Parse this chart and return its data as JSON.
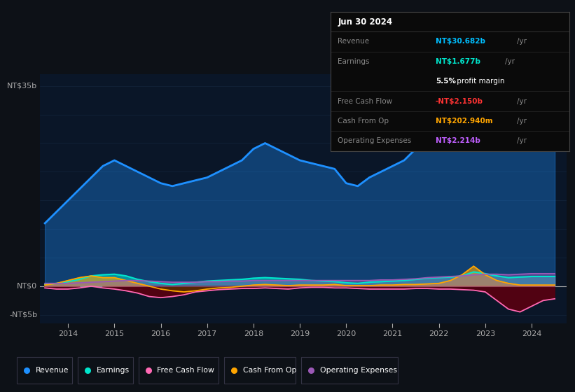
{
  "bg_color": "#0d1117",
  "plot_bg_color": "#0a1628",
  "grid_color": "#162840",
  "title_date": "Jun 30 2024",
  "tooltip": {
    "Revenue": {
      "value": "NT$30.682b",
      "unit": "/yr",
      "color": "#00bfff"
    },
    "Earnings": {
      "value": "NT$1.677b",
      "unit": "/yr",
      "color": "#00e5cc"
    },
    "profit_margin_pct": "5.5%",
    "profit_margin_text": " profit margin",
    "Free Cash Flow": {
      "value": "-NT$2.150b",
      "unit": "/yr",
      "color": "#ff3333"
    },
    "Cash From Op": {
      "value": "NT$202.940m",
      "unit": "/yr",
      "color": "#ffa500"
    },
    "Operating Expenses": {
      "value": "NT$2.214b",
      "unit": "/yr",
      "color": "#bf5fff"
    }
  },
  "colors": {
    "Revenue": "#1e90ff",
    "Earnings": "#00e5cc",
    "Free Cash Flow": "#ff69b4",
    "Cash From Op": "#ffa500",
    "Operating Expenses": "#9b59b6"
  },
  "years": [
    2013.5,
    2013.75,
    2014.0,
    2014.25,
    2014.5,
    2014.75,
    2015.0,
    2015.25,
    2015.5,
    2015.75,
    2016.0,
    2016.25,
    2016.5,
    2016.75,
    2017.0,
    2017.25,
    2017.5,
    2017.75,
    2018.0,
    2018.25,
    2018.5,
    2018.75,
    2019.0,
    2019.25,
    2019.5,
    2019.75,
    2020.0,
    2020.25,
    2020.5,
    2020.75,
    2021.0,
    2021.25,
    2021.5,
    2021.75,
    2022.0,
    2022.25,
    2022.5,
    2022.75,
    2023.0,
    2023.25,
    2023.5,
    2023.75,
    2024.0,
    2024.25,
    2024.5
  ],
  "revenue": [
    11,
    13,
    15,
    17,
    19,
    21,
    22,
    21,
    20,
    19,
    18,
    17.5,
    18,
    18.5,
    19,
    20,
    21,
    22,
    24,
    25,
    24,
    23,
    22,
    21.5,
    21,
    20.5,
    18,
    17.5,
    19,
    20,
    21,
    22,
    24,
    26,
    28,
    30,
    33,
    35,
    32,
    29,
    27,
    29,
    30,
    30.5,
    30.7
  ],
  "earnings": [
    0.3,
    0.5,
    0.8,
    1.2,
    1.8,
    2.0,
    2.1,
    1.8,
    1.2,
    0.8,
    0.5,
    0.3,
    0.5,
    0.7,
    0.9,
    1.0,
    1.1,
    1.2,
    1.4,
    1.5,
    1.4,
    1.3,
    1.2,
    1.0,
    0.9,
    0.8,
    0.6,
    0.5,
    0.7,
    0.8,
    0.9,
    1.0,
    1.2,
    1.4,
    1.5,
    1.6,
    1.8,
    2.5,
    2.2,
    1.8,
    1.5,
    1.6,
    1.7,
    1.7,
    1.7
  ],
  "free_cash_flow": [
    -0.3,
    -0.5,
    -0.5,
    -0.3,
    0.0,
    -0.3,
    -0.5,
    -0.8,
    -1.2,
    -1.8,
    -2.0,
    -1.8,
    -1.5,
    -1.0,
    -0.8,
    -0.6,
    -0.5,
    -0.4,
    -0.4,
    -0.3,
    -0.4,
    -0.5,
    -0.3,
    -0.2,
    -0.2,
    -0.3,
    -0.3,
    -0.4,
    -0.5,
    -0.5,
    -0.5,
    -0.5,
    -0.4,
    -0.4,
    -0.5,
    -0.5,
    -0.6,
    -0.7,
    -1.0,
    -2.5,
    -4.0,
    -4.5,
    -3.5,
    -2.5,
    -2.2
  ],
  "cash_from_op": [
    0.2,
    0.5,
    1.0,
    1.5,
    1.8,
    1.5,
    1.5,
    1.0,
    0.5,
    0.0,
    -0.5,
    -0.8,
    -1.0,
    -0.8,
    -0.5,
    -0.3,
    -0.2,
    0.0,
    0.2,
    0.3,
    0.2,
    0.1,
    0.2,
    0.2,
    0.2,
    0.3,
    0.1,
    0.1,
    0.1,
    0.2,
    0.2,
    0.3,
    0.3,
    0.4,
    0.5,
    1.0,
    2.0,
    3.5,
    2.0,
    1.0,
    0.5,
    0.2,
    0.2,
    0.2,
    0.2
  ],
  "op_expenses": [
    0.5,
    0.5,
    0.5,
    0.6,
    0.7,
    0.8,
    0.9,
    1.0,
    1.0,
    0.9,
    0.8,
    0.7,
    0.7,
    0.7,
    0.8,
    0.8,
    0.9,
    0.9,
    1.0,
    1.0,
    1.0,
    1.0,
    1.0,
    1.0,
    1.0,
    1.0,
    1.0,
    1.0,
    1.0,
    1.1,
    1.1,
    1.2,
    1.3,
    1.5,
    1.6,
    1.7,
    1.8,
    2.0,
    2.1,
    2.1,
    2.0,
    2.1,
    2.2,
    2.2,
    2.2
  ],
  "xticks": [
    2014,
    2015,
    2016,
    2017,
    2018,
    2019,
    2020,
    2021,
    2022,
    2023,
    2024
  ],
  "ylim": [
    -6.5,
    37
  ],
  "xlim": [
    2013.4,
    2024.75
  ],
  "yticks_vals": [
    35,
    0,
    -5
  ],
  "yticks_labels": [
    "NT$35b",
    "NT$0",
    "-NT$5b"
  ]
}
